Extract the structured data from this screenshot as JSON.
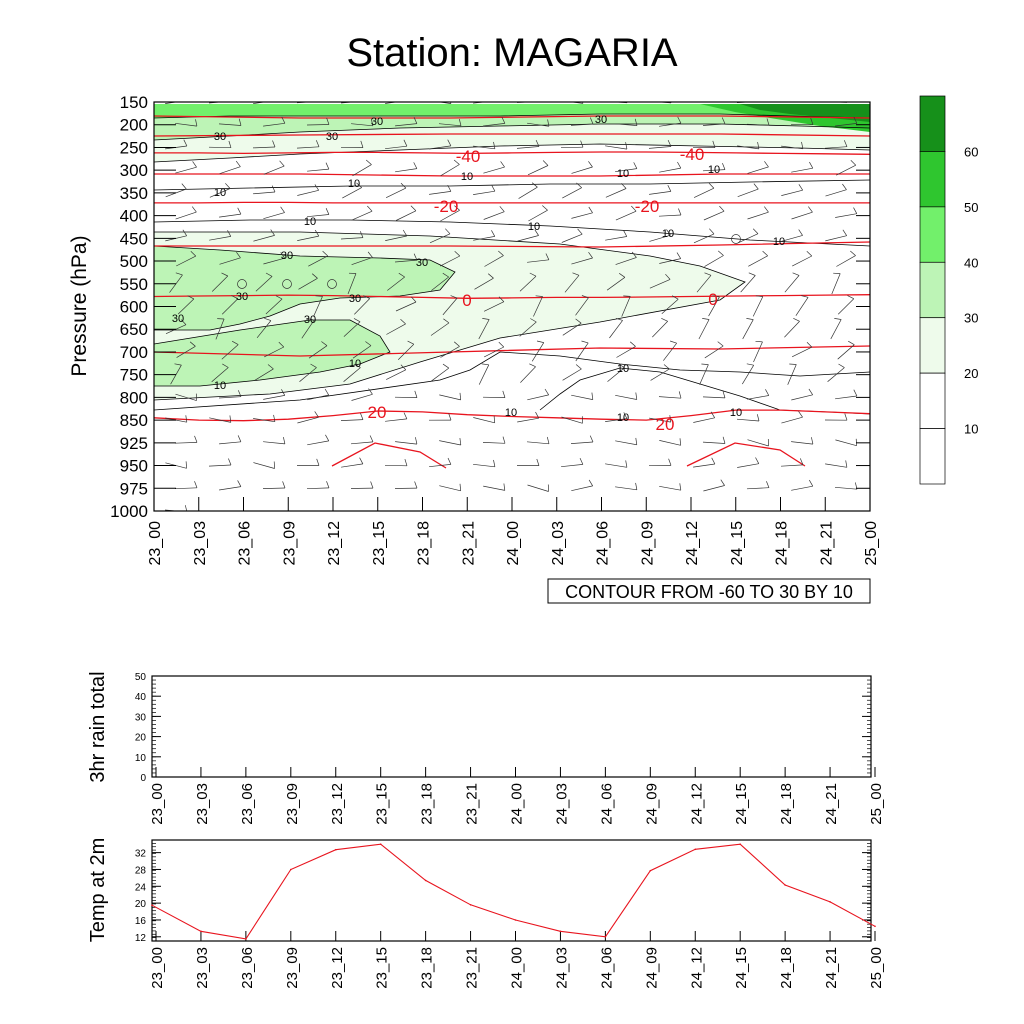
{
  "title": "Station: MAGARIA",
  "time_labels": [
    "23_00",
    "23_03",
    "23_06",
    "23_09",
    "23_12",
    "23_15",
    "23_18",
    "23_21",
    "24_00",
    "24_03",
    "24_06",
    "24_09",
    "24_12",
    "24_15",
    "24_18",
    "24_21",
    "25_00"
  ],
  "colors": {
    "temp_contour": "#e8141e",
    "rh_contour": "#000000",
    "shade_10_20": "#ffffff",
    "shade_20_30": "#eefbeb",
    "shade_30_40": "#bdf4b6",
    "shade_40_50": "#72f06b",
    "shade_50_60": "#2fc62f",
    "shade_60_plus": "#16901a",
    "temp_line": "#e8141e"
  },
  "chart_data": [
    {
      "type": "contour",
      "ylabel": "Pressure (hPa)",
      "y_levels": [
        150,
        200,
        250,
        300,
        350,
        400,
        450,
        500,
        550,
        600,
        650,
        700,
        750,
        800,
        850,
        925,
        950,
        975,
        1000
      ],
      "ylim": [
        150,
        1000
      ],
      "y_reversed": true,
      "x_categories": [
        "23_00",
        "23_03",
        "23_06",
        "23_09",
        "23_12",
        "23_15",
        "23_18",
        "23_21",
        "24_00",
        "24_03",
        "24_06",
        "24_09",
        "24_12",
        "24_15",
        "24_18",
        "24_21",
        "25_00"
      ],
      "contour_info": "CONTOUR FROM -60 TO 30 BY 10",
      "colorbar_labels": [
        "10",
        "20",
        "30",
        "40",
        "50",
        "60"
      ],
      "temperature_contour_labels": [
        "-40",
        "-40",
        "-20",
        "-20",
        "0",
        "0",
        "20",
        "20"
      ],
      "rh_contour_labels": [
        "30",
        "30",
        "30",
        "30",
        "10",
        "10",
        "10",
        "10",
        "10",
        "10",
        "10",
        "30",
        "30",
        "30",
        "30",
        "30",
        "30",
        "10",
        "10",
        "10",
        "10"
      ],
      "temperature_contours": [
        {
          "label": "-40",
          "level_hpa": [
            262,
            262,
            263,
            262,
            261,
            261,
            262,
            263,
            262,
            261,
            260,
            260,
            261,
            262,
            263,
            264,
            265
          ]
        },
        {
          "label": "-20",
          "level_hpa": [
            372,
            372,
            371,
            371,
            372,
            372,
            372,
            372,
            372,
            372,
            372,
            372,
            372,
            372,
            372,
            372,
            372
          ]
        },
        {
          "label": "0",
          "level_hpa": [
            578,
            577,
            576,
            575,
            576,
            578,
            580,
            582,
            581,
            580,
            580,
            579,
            578,
            577,
            576,
            575,
            574
          ]
        },
        {
          "label": "20",
          "level_hpa": [
            845,
            850,
            852,
            848,
            840,
            830,
            832,
            838,
            842,
            845,
            848,
            850,
            840,
            828,
            828,
            832,
            836
          ]
        }
      ]
    },
    {
      "type": "line",
      "ylabel": "3hr rain total",
      "x": [
        "23_00",
        "23_03",
        "23_06",
        "23_09",
        "23_12",
        "23_15",
        "23_18",
        "23_21",
        "24_00",
        "24_03",
        "24_06",
        "24_09",
        "24_12",
        "24_15",
        "24_18",
        "24_21",
        "25_00"
      ],
      "values": [
        0,
        0,
        0,
        0,
        0,
        0,
        0,
        0,
        0,
        0,
        0,
        0,
        0,
        0,
        0,
        0,
        0
      ],
      "ylim": [
        0,
        50
      ],
      "yticks": [
        0,
        10,
        20,
        30,
        40,
        50
      ]
    },
    {
      "type": "line",
      "ylabel": "Temp at 2m",
      "x": [
        "23_00",
        "23_03",
        "23_06",
        "23_09",
        "23_12",
        "23_15",
        "23_18",
        "23_21",
        "24_00",
        "24_03",
        "24_06",
        "24_09",
        "24_12",
        "24_15",
        "24_18",
        "24_21",
        "25_00"
      ],
      "values": [
        19.5,
        13.3,
        11.5,
        28.0,
        32.7,
        34.0,
        25.4,
        19.6,
        16.0,
        13.3,
        12.0,
        27.7,
        32.8,
        34.0,
        24.3,
        20.3,
        14.5
      ],
      "ylim": [
        11,
        35
      ],
      "yticks": [
        12,
        16,
        20,
        24,
        28,
        32
      ]
    }
  ]
}
